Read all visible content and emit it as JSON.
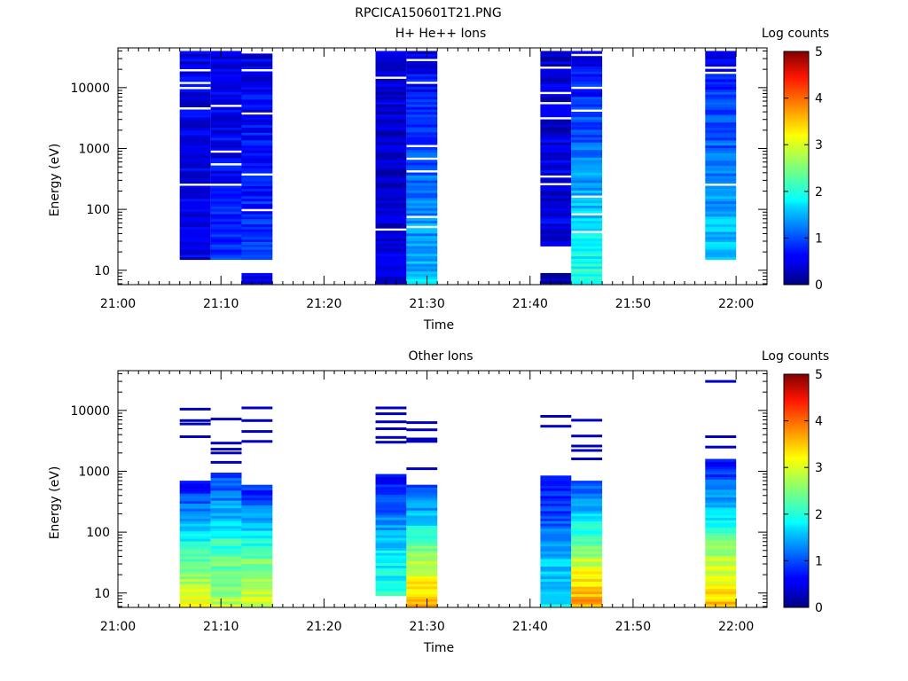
{
  "figure": {
    "title": "RPCICA150601T21.PNG"
  },
  "chart_data": [
    {
      "type": "heatmap",
      "title": "H+ He++ Ions",
      "xlabel": "Time",
      "ylabel": "Energy (eV)",
      "x_range": [
        "21:00",
        "22:03"
      ],
      "y_range": [
        5.8,
        45000
      ],
      "y_scale": "log",
      "x_ticks": [
        "21:00",
        "21:10",
        "21:20",
        "21:30",
        "21:40",
        "21:50",
        "22:00"
      ],
      "y_ticks": [
        "10",
        "100",
        "1000",
        "10000"
      ],
      "colorbar": {
        "label": "Log counts",
        "min": 0,
        "max": 5,
        "ticks": [
          "0",
          "1",
          "2",
          "3",
          "4",
          "5"
        ]
      },
      "grid": false,
      "blocks": [
        {
          "t_start": "21:06",
          "t_end": "21:09",
          "e_low": 15,
          "e_high": 40000,
          "low_log": 0.5,
          "high_log": 0.5
        },
        {
          "t_start": "21:09",
          "t_end": "21:12",
          "e_low": 15,
          "e_high": 40000,
          "low_log": 0.8,
          "high_log": 0.4
        },
        {
          "t_start": "21:12",
          "t_end": "21:15",
          "e_low": 15,
          "e_high": 40000,
          "low_log": 0.9,
          "high_log": 0.5
        },
        {
          "t_start": "21:12",
          "t_end": "21:15",
          "e_low": 6,
          "e_high": 9,
          "low_log": 0.5,
          "high_log": 0.5
        },
        {
          "t_start": "21:25",
          "t_end": "21:28",
          "e_low": 6,
          "e_high": 40000,
          "low_log": 0.4,
          "high_log": 0.4
        },
        {
          "t_start": "21:28",
          "t_end": "21:31",
          "e_low": 6,
          "e_high": 40000,
          "low_log": 1.6,
          "high_log": 0.5
        },
        {
          "t_start": "21:41",
          "t_end": "21:44",
          "e_low": 25,
          "e_high": 40000,
          "low_log": 0.5,
          "high_log": 0.4
        },
        {
          "t_start": "21:41",
          "t_end": "21:44",
          "e_low": 6,
          "e_high": 9,
          "low_log": 0.2,
          "high_log": 0.2
        },
        {
          "t_start": "21:44",
          "t_end": "21:47",
          "e_low": 6,
          "e_high": 40000,
          "low_log": 2.1,
          "high_log": 0.5
        },
        {
          "t_start": "21:57",
          "t_end": "22:00",
          "e_low": 15,
          "e_high": 40000,
          "low_log": 1.7,
          "high_log": 0.6
        }
      ]
    },
    {
      "type": "heatmap",
      "title": "Other Ions",
      "xlabel": "Time",
      "ylabel": "Energy (eV)",
      "x_range": [
        "21:00",
        "22:03"
      ],
      "y_range": [
        5.8,
        45000
      ],
      "y_scale": "log",
      "x_ticks": [
        "21:00",
        "21:10",
        "21:20",
        "21:30",
        "21:40",
        "21:50",
        "22:00"
      ],
      "y_ticks": [
        "10",
        "100",
        "1000",
        "10000"
      ],
      "colorbar": {
        "label": "Log counts",
        "min": 0,
        "max": 5,
        "ticks": [
          "0",
          "1",
          "2",
          "3",
          "4",
          "5"
        ]
      },
      "grid": false,
      "blocks": [
        {
          "t_start": "21:06",
          "t_end": "21:09",
          "e_low": 6,
          "e_high": 700,
          "low_log": 3.1,
          "high_log": 0.6,
          "peak_e": 40,
          "peak_log": 3.3
        },
        {
          "t_start": "21:09",
          "t_end": "21:12",
          "e_low": 6,
          "e_high": 950,
          "low_log": 2.8,
          "high_log": 0.9,
          "peak_e": 40,
          "peak_log": 3.1
        },
        {
          "t_start": "21:12",
          "t_end": "21:15",
          "e_low": 6,
          "e_high": 600,
          "low_log": 3.0,
          "high_log": 0.7,
          "peak_e": 35,
          "peak_log": 3.4
        },
        {
          "t_start": "21:25",
          "t_end": "21:28",
          "e_low": 9,
          "e_high": 900,
          "low_log": 2.0,
          "high_log": 0.7,
          "peak_e": 60,
          "peak_log": 2.4
        },
        {
          "t_start": "21:28",
          "t_end": "21:31",
          "e_low": 6,
          "e_high": 600,
          "low_log": 3.6,
          "high_log": 0.8,
          "peak_e": 50,
          "peak_log": 3.9
        },
        {
          "t_start": "21:41",
          "t_end": "21:44",
          "e_low": 6,
          "e_high": 850,
          "low_log": 1.8,
          "high_log": 0.6,
          "peak_e": 50,
          "peak_log": 2.1
        },
        {
          "t_start": "21:44",
          "t_end": "21:47",
          "e_low": 6,
          "e_high": 700,
          "low_log": 3.6,
          "high_log": 0.9,
          "peak_e": 40,
          "peak_log": 3.9
        },
        {
          "t_start": "21:57",
          "t_end": "22:00",
          "e_low": 6,
          "e_high": 1600,
          "low_log": 3.4,
          "high_log": 0.6,
          "peak_e": 50,
          "peak_log": 3.8
        }
      ],
      "lines": [
        {
          "t_start": "21:06",
          "t_end": "21:09",
          "e": [
            10500,
            6800,
            6000,
            3700
          ]
        },
        {
          "t_start": "21:09",
          "t_end": "21:12",
          "e": [
            7200,
            2900,
            2300,
            2000,
            1400
          ]
        },
        {
          "t_start": "21:12",
          "t_end": "21:15",
          "e": [
            11000,
            6800,
            4500,
            3100
          ]
        },
        {
          "t_start": "21:25",
          "t_end": "21:28",
          "e": [
            11000,
            8800,
            6500,
            5000,
            3600,
            3000
          ]
        },
        {
          "t_start": "21:28",
          "t_end": "21:31",
          "e": [
            6300,
            4800,
            3400,
            3100,
            1100
          ]
        },
        {
          "t_start": "21:41",
          "t_end": "21:44",
          "e": [
            8000,
            5500
          ]
        },
        {
          "t_start": "21:44",
          "t_end": "21:47",
          "e": [
            6900,
            3800,
            2600,
            2200,
            1600
          ]
        },
        {
          "t_start": "21:57",
          "t_end": "22:00",
          "e": [
            30000,
            3700,
            2500
          ]
        }
      ]
    }
  ]
}
